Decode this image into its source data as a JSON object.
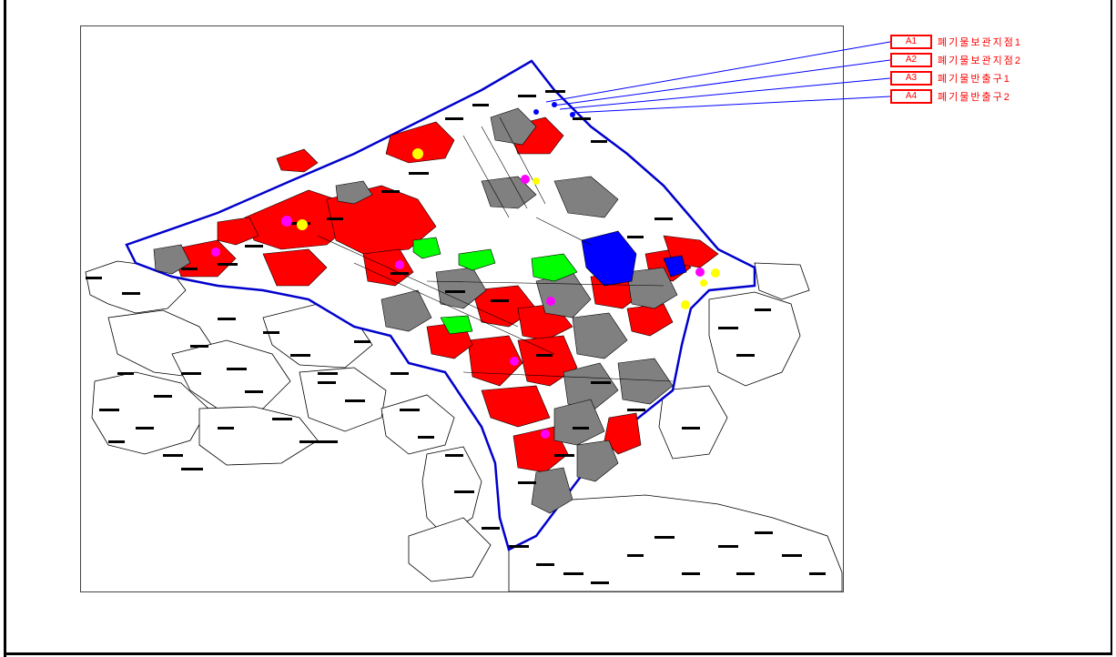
{
  "legend": [
    {
      "code": "A1",
      "label": "폐기물보관지점1"
    },
    {
      "code": "A2",
      "label": "폐기물보관지점2"
    },
    {
      "code": "A3",
      "label": "폐기물반출구1"
    },
    {
      "code": "A4",
      "label": "폐기물반출구2"
    }
  ],
  "colors": {
    "red_zone": "#ff0000",
    "gray_zone": "#808080",
    "blue_zone": "#0000ff",
    "green_zone": "#00ff00",
    "boundary": "#0000cc",
    "magenta_marker": "#ff00ff",
    "yellow_marker": "#ffff00",
    "parcel_outline": "#000000",
    "label_text": "#ff0000"
  }
}
